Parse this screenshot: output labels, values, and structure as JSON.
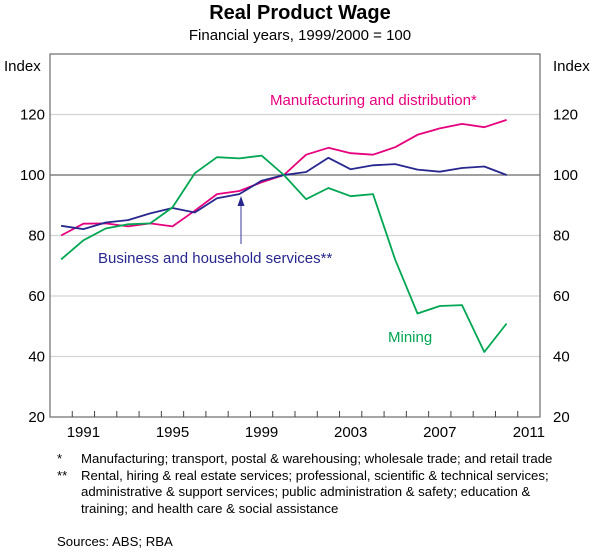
{
  "chart_data": {
    "type": "line",
    "title": "Real Product Wage",
    "subtitle": "Financial years, 1999/2000 = 100",
    "ylabel_left": "Index",
    "ylabel_right": "Index",
    "ylim": [
      20,
      140
    ],
    "yticks": [
      20,
      40,
      60,
      80,
      100,
      120
    ],
    "xlim": [
      1990,
      2011
    ],
    "xtick_labels": [
      "1991",
      "1995",
      "1999",
      "2003",
      "2007",
      "2011"
    ],
    "grid": true,
    "reference_line": 100,
    "x": [
      1990,
      1991,
      1992,
      1993,
      1994,
      1995,
      1996,
      1997,
      1998,
      1999,
      2000,
      2001,
      2002,
      2003,
      2004,
      2005,
      2006,
      2007,
      2008,
      2009,
      2010
    ],
    "series": [
      {
        "name": "Manufacturing and distribution*",
        "color": "#e6007e",
        "values": [
          80,
          83.9,
          84,
          83,
          84,
          83,
          88.2,
          93.7,
          94.7,
          97.6,
          100,
          106.7,
          109,
          107.2,
          106.7,
          109.2,
          113.3,
          115.4,
          116.9,
          115.8,
          118.2
        ]
      },
      {
        "name": "Business and household services**",
        "color": "#27278f",
        "values": [
          83.2,
          82.1,
          84.3,
          85.1,
          87.3,
          89.1,
          87.6,
          92.3,
          93.7,
          98.1,
          100,
          101,
          105.7,
          101.9,
          103.2,
          103.6,
          101.8,
          101.1,
          102.3,
          102.8,
          100
        ]
      },
      {
        "name": "Mining",
        "color": "#00a651",
        "values": [
          72.1,
          78.4,
          82.3,
          83.7,
          84,
          89.3,
          100.6,
          105.9,
          105.5,
          106.4,
          100,
          92,
          95.7,
          93,
          93.7,
          72,
          54.2,
          56.7,
          57,
          41.5,
          50.9
        ]
      }
    ]
  },
  "footnotes": [
    {
      "mark": "*",
      "text": "Manufacturing; transport, postal & warehousing; wholesale trade; and retail trade"
    },
    {
      "mark": "**",
      "text": "Rental, hiring & real estate services; professional, scientific & technical services; administrative & support services; public administration & safety; education & training; and health care & social assistance"
    }
  ],
  "sources": "Sources: ABS; RBA"
}
